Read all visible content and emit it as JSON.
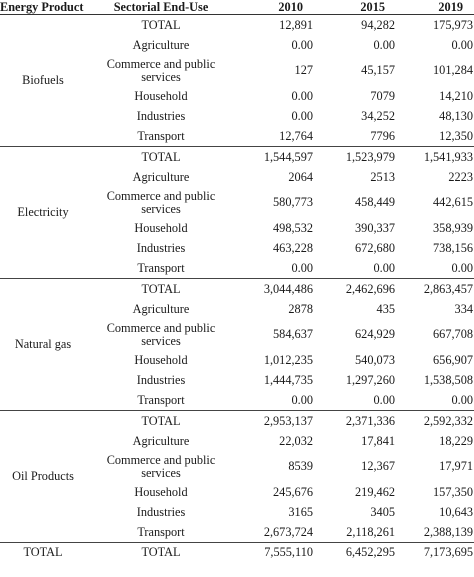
{
  "header": {
    "product": "Energy Product",
    "use": "Sectorial End-Use",
    "y2010": "2010",
    "y2015": "2015",
    "y2019": "2019"
  },
  "groups": [
    {
      "product": "Biofuels",
      "rows": [
        {
          "use": "TOTAL",
          "v2010": "12,891",
          "v2015": "94,282",
          "v2019": "175,973"
        },
        {
          "use": "Agriculture",
          "v2010": "0.00",
          "v2015": "0.00",
          "v2019": "0.00"
        },
        {
          "use": "Commerce and public services",
          "v2010": "127",
          "v2015": "45,157",
          "v2019": "101,284"
        },
        {
          "use": "Household",
          "v2010": "0.00",
          "v2015": "7079",
          "v2019": "14,210"
        },
        {
          "use": "Industries",
          "v2010": "0.00",
          "v2015": "34,252",
          "v2019": "48,130"
        },
        {
          "use": "Transport",
          "v2010": "12,764",
          "v2015": "7796",
          "v2019": "12,350"
        }
      ]
    },
    {
      "product": "Electricity",
      "rows": [
        {
          "use": "TOTAL",
          "v2010": "1,544,597",
          "v2015": "1,523,979",
          "v2019": "1,541,933"
        },
        {
          "use": "Agriculture",
          "v2010": "2064",
          "v2015": "2513",
          "v2019": "2223"
        },
        {
          "use": "Commerce and public services",
          "v2010": "580,773",
          "v2015": "458,449",
          "v2019": "442,615"
        },
        {
          "use": "Household",
          "v2010": "498,532",
          "v2015": "390,337",
          "v2019": "358,939"
        },
        {
          "use": "Industries",
          "v2010": "463,228",
          "v2015": "672,680",
          "v2019": "738,156"
        },
        {
          "use": "Transport",
          "v2010": "0.00",
          "v2015": "0.00",
          "v2019": "0.00"
        }
      ]
    },
    {
      "product": "Natural gas",
      "rows": [
        {
          "use": "TOTAL",
          "v2010": "3,044,486",
          "v2015": "2,462,696",
          "v2019": "2,863,457"
        },
        {
          "use": "Agriculture",
          "v2010": "2878",
          "v2015": "435",
          "v2019": "334"
        },
        {
          "use": "Commerce and public services",
          "v2010": "584,637",
          "v2015": "624,929",
          "v2019": "667,708"
        },
        {
          "use": "Household",
          "v2010": "1,012,235",
          "v2015": "540,073",
          "v2019": "656,907"
        },
        {
          "use": "Industries",
          "v2010": "1,444,735",
          "v2015": "1,297,260",
          "v2019": "1,538,508"
        },
        {
          "use": "Transport",
          "v2010": "0.00",
          "v2015": "0.00",
          "v2019": "0.00"
        }
      ]
    },
    {
      "product": "Oil Products",
      "rows": [
        {
          "use": "TOTAL",
          "v2010": "2,953,137",
          "v2015": "2,371,336",
          "v2019": "2,592,332"
        },
        {
          "use": "Agriculture",
          "v2010": "22,032",
          "v2015": "17,841",
          "v2019": "18,229"
        },
        {
          "use": "Commerce and public services",
          "v2010": "8539",
          "v2015": "12,367",
          "v2019": "17,971"
        },
        {
          "use": "Household",
          "v2010": "245,676",
          "v2015": "219,462",
          "v2019": "157,350"
        },
        {
          "use": "Industries",
          "v2010": "3165",
          "v2015": "3405",
          "v2019": "10,643"
        },
        {
          "use": "Transport",
          "v2010": "2,673,724",
          "v2015": "2,118,261",
          "v2019": "2,388,139"
        }
      ]
    }
  ],
  "total": {
    "product": "TOTAL",
    "use": "TOTAL",
    "v2010": "7,555,110",
    "v2015": "6,452,295",
    "v2019": "7,173,695"
  }
}
